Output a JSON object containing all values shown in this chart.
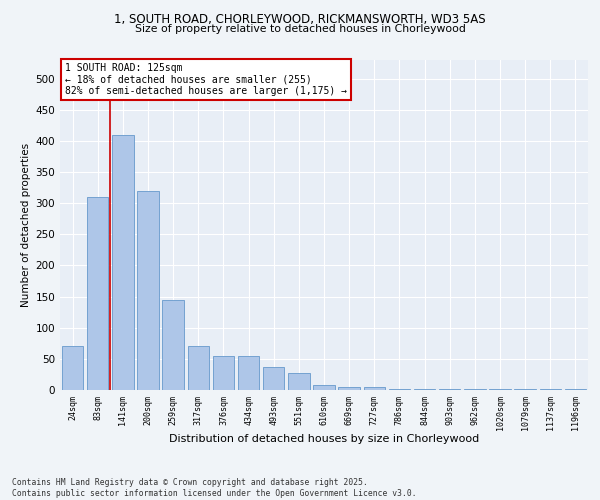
{
  "title1": "1, SOUTH ROAD, CHORLEYWOOD, RICKMANSWORTH, WD3 5AS",
  "title2": "Size of property relative to detached houses in Chorleywood",
  "xlabel": "Distribution of detached houses by size in Chorleywood",
  "ylabel": "Number of detached properties",
  "categories": [
    "24sqm",
    "83sqm",
    "141sqm",
    "200sqm",
    "259sqm",
    "317sqm",
    "376sqm",
    "434sqm",
    "493sqm",
    "551sqm",
    "610sqm",
    "669sqm",
    "727sqm",
    "786sqm",
    "844sqm",
    "903sqm",
    "962sqm",
    "1020sqm",
    "1079sqm",
    "1137sqm",
    "1196sqm"
  ],
  "values": [
    70,
    310,
    410,
    320,
    145,
    70,
    55,
    55,
    37,
    28,
    8,
    5,
    5,
    1,
    1,
    1,
    1,
    1,
    1,
    1,
    2
  ],
  "bar_color": "#aec6e8",
  "bar_edge_color": "#6699cc",
  "vline_x": 1.5,
  "vline_color": "#cc0000",
  "annotation_text": "1 SOUTH ROAD: 125sqm\n← 18% of detached houses are smaller (255)\n82% of semi-detached houses are larger (1,175) →",
  "annotation_box_color": "#ffffff",
  "annotation_border_color": "#cc0000",
  "footer_text": "Contains HM Land Registry data © Crown copyright and database right 2025.\nContains public sector information licensed under the Open Government Licence v3.0.",
  "background_color": "#f0f4f8",
  "plot_bg_color": "#e8eef6",
  "grid_color": "#ffffff",
  "ylim": [
    0,
    530
  ],
  "yticks": [
    0,
    50,
    100,
    150,
    200,
    250,
    300,
    350,
    400,
    450,
    500
  ]
}
